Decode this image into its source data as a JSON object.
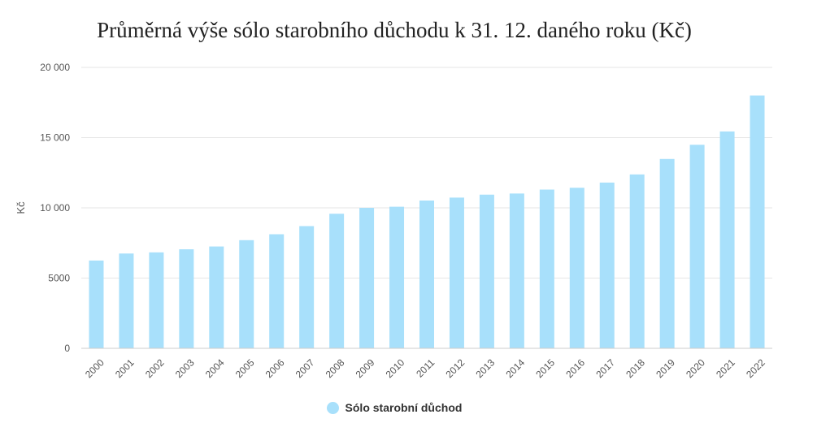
{
  "colors": {
    "bar": "#a8e0fb",
    "grid": "#e6e6e6",
    "axis": "#cccccc",
    "tick_text": "#555555",
    "title_text": "#222222"
  },
  "chart_data": {
    "type": "bar",
    "title": "Průměrná výše sólo starobního důchodu k 31. 12. daného roku (Kč)",
    "xlabel": "",
    "ylabel": "Kč",
    "ylim": [
      0,
      20000
    ],
    "yticks": [
      0,
      5000,
      10000,
      15000,
      20000
    ],
    "ytick_labels": [
      "0",
      "5000",
      "10 000",
      "15 000",
      "20 000"
    ],
    "grid": true,
    "legend_position": "bottom-center",
    "categories": [
      "2000",
      "2001",
      "2002",
      "2003",
      "2004",
      "2005",
      "2006",
      "2007",
      "2008",
      "2009",
      "2010",
      "2011",
      "2012",
      "2013",
      "2014",
      "2015",
      "2016",
      "2017",
      "2018",
      "2019",
      "2020",
      "2021",
      "2022"
    ],
    "series": [
      {
        "name": "Sólo starobní důchod",
        "values": [
          6250,
          6750,
          6830,
          7050,
          7250,
          7700,
          8120,
          8700,
          9580,
          10000,
          10080,
          10520,
          10730,
          10940,
          11020,
          11300,
          11430,
          11800,
          12380,
          13480,
          14490,
          15440,
          18000
        ]
      }
    ]
  }
}
